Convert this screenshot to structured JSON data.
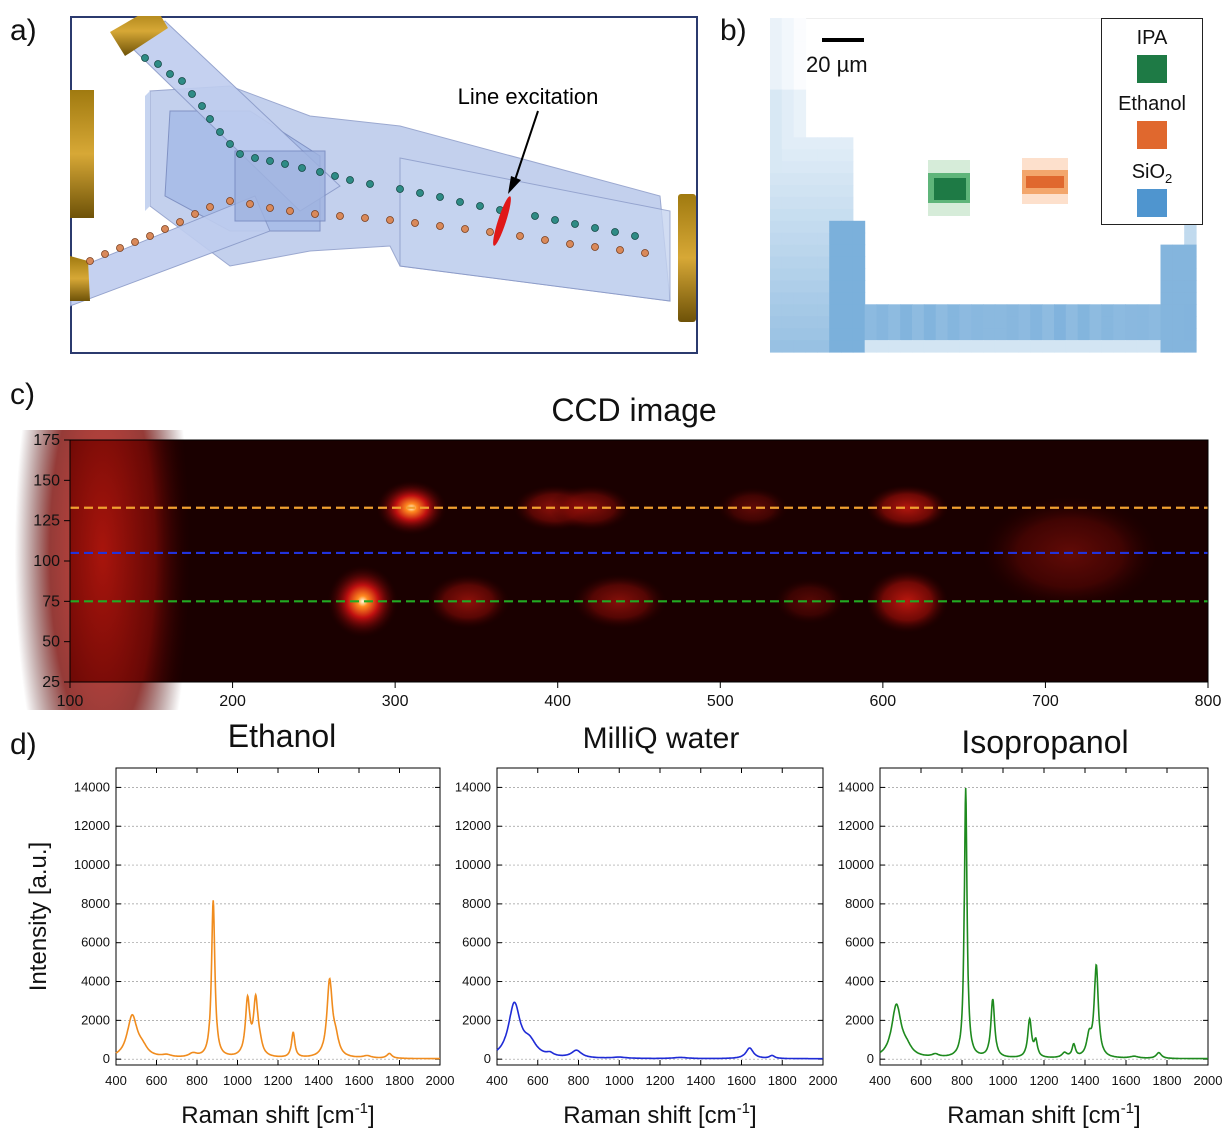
{
  "panels": {
    "a": "a)",
    "b": "b)",
    "c": "c)",
    "d": "d)"
  },
  "panel_a": {
    "annotation": "Line excitation"
  },
  "panel_b": {
    "scale_bar": "20 µm",
    "legend": [
      {
        "label": "IPA",
        "color": "#1e7a45"
      },
      {
        "label": "Ethanol",
        "color": "#e0682e"
      },
      {
        "label": "SiO",
        "sub": "2",
        "color": "#4f95cf"
      }
    ]
  },
  "chart_data": [
    {
      "type": "heatmap",
      "title": "CCD image",
      "xlim": [
        100,
        800
      ],
      "ylim": [
        25,
        175
      ],
      "xticks": [
        "100",
        "200",
        "300",
        "400",
        "500",
        "600",
        "700",
        "800"
      ],
      "yticks": [
        "175",
        "150",
        "125",
        "100",
        "75",
        "50",
        "25"
      ],
      "lines": [
        {
          "y": 133,
          "color": "#f0a030",
          "style": "dashed"
        },
        {
          "y": 105,
          "color": "#2233dd",
          "style": "dashed"
        },
        {
          "y": 75,
          "color": "#22aa22",
          "style": "dashed"
        }
      ],
      "spots": [
        {
          "x": 120,
          "y": 105,
          "i": 0.7,
          "w": 30,
          "h": 140
        },
        {
          "x": 310,
          "y": 133,
          "i": 1.0,
          "w": 12,
          "h": 12
        },
        {
          "x": 398,
          "y": 133,
          "i": 0.55,
          "w": 14,
          "h": 10
        },
        {
          "x": 420,
          "y": 133,
          "i": 0.5,
          "w": 14,
          "h": 10
        },
        {
          "x": 520,
          "y": 133,
          "i": 0.3,
          "w": 12,
          "h": 9
        },
        {
          "x": 615,
          "y": 133,
          "i": 0.75,
          "w": 14,
          "h": 10
        },
        {
          "x": 280,
          "y": 75,
          "i": 1.0,
          "w": 12,
          "h": 16
        },
        {
          "x": 345,
          "y": 75,
          "i": 0.55,
          "w": 14,
          "h": 12
        },
        {
          "x": 438,
          "y": 75,
          "i": 0.5,
          "w": 16,
          "h": 12
        },
        {
          "x": 555,
          "y": 75,
          "i": 0.25,
          "w": 12,
          "h": 10
        },
        {
          "x": 615,
          "y": 75,
          "i": 0.8,
          "w": 14,
          "h": 14
        },
        {
          "x": 715,
          "y": 105,
          "i": 0.3,
          "w": 30,
          "h": 25
        }
      ]
    },
    {
      "type": "line",
      "title": "Ethanol",
      "color": "#f08c1e",
      "xlabel": "Raman shift [cm",
      "xlabel_sup": "-1",
      "xlabel_end": "]",
      "ylabel": "Intensity [a.u.]",
      "xlim": [
        400,
        2000
      ],
      "ylim": [
        -300,
        15000
      ],
      "xticks": [
        400,
        600,
        800,
        1000,
        1200,
        1400,
        1600,
        1800,
        2000
      ],
      "yticks": [
        0,
        2000,
        4000,
        6000,
        8000,
        10000,
        12000,
        14000
      ],
      "baseline": 20,
      "peaks": [
        {
          "x": 480,
          "h": 2150,
          "w": 30
        },
        {
          "x": 530,
          "h": 400,
          "w": 30
        },
        {
          "x": 650,
          "h": 120,
          "w": 30
        },
        {
          "x": 780,
          "h": 200,
          "w": 25
        },
        {
          "x": 880,
          "h": 8100,
          "w": 10
        },
        {
          "x": 1050,
          "h": 2900,
          "w": 13
        },
        {
          "x": 1090,
          "h": 2800,
          "w": 13
        },
        {
          "x": 1110,
          "h": 500,
          "w": 15
        },
        {
          "x": 1275,
          "h": 1300,
          "w": 10
        },
        {
          "x": 1455,
          "h": 3900,
          "w": 16
        },
        {
          "x": 1485,
          "h": 800,
          "w": 18
        },
        {
          "x": 1640,
          "h": 120,
          "w": 25
        },
        {
          "x": 1750,
          "h": 250,
          "w": 15
        }
      ]
    },
    {
      "type": "line",
      "title": "MilliQ water",
      "color": "#1f2bd6",
      "xlabel": "Raman shift [cm",
      "xlabel_sup": "-1",
      "xlabel_end": "]",
      "xlim": [
        400,
        2000
      ],
      "ylim": [
        -300,
        15000
      ],
      "xticks": [
        400,
        600,
        800,
        1000,
        1200,
        1400,
        1600,
        1800,
        2000
      ],
      "yticks": [
        0,
        2000,
        4000,
        6000,
        8000,
        10000,
        12000,
        14000
      ],
      "baseline": 20,
      "peaks": [
        {
          "x": 485,
          "h": 2750,
          "w": 35
        },
        {
          "x": 560,
          "h": 700,
          "w": 40
        },
        {
          "x": 660,
          "h": 150,
          "w": 20
        },
        {
          "x": 790,
          "h": 380,
          "w": 30
        },
        {
          "x": 1000,
          "h": 60,
          "w": 40
        },
        {
          "x": 1300,
          "h": 60,
          "w": 40
        },
        {
          "x": 1640,
          "h": 550,
          "w": 22
        },
        {
          "x": 1750,
          "h": 150,
          "w": 15
        }
      ]
    },
    {
      "type": "line",
      "title": "Isopropanol",
      "color": "#1e8a1e",
      "xlabel": "Raman shift [cm",
      "xlabel_sup": "-1",
      "xlabel_end": "]",
      "xlim": [
        400,
        2000
      ],
      "ylim": [
        -300,
        15000
      ],
      "xticks": [
        400,
        600,
        800,
        1000,
        1200,
        1400,
        1600,
        1800,
        2000
      ],
      "yticks": [
        0,
        2000,
        4000,
        6000,
        8000,
        10000,
        12000,
        14000
      ],
      "baseline": 20,
      "peaks": [
        {
          "x": 480,
          "h": 2700,
          "w": 28
        },
        {
          "x": 530,
          "h": 400,
          "w": 30
        },
        {
          "x": 670,
          "h": 150,
          "w": 20
        },
        {
          "x": 818,
          "h": 13900,
          "w": 8
        },
        {
          "x": 950,
          "h": 3000,
          "w": 11
        },
        {
          "x": 1130,
          "h": 1950,
          "w": 11
        },
        {
          "x": 1160,
          "h": 800,
          "w": 10
        },
        {
          "x": 1300,
          "h": 250,
          "w": 15
        },
        {
          "x": 1345,
          "h": 650,
          "w": 10
        },
        {
          "x": 1420,
          "h": 1000,
          "w": 14
        },
        {
          "x": 1455,
          "h": 4700,
          "w": 12
        },
        {
          "x": 1640,
          "h": 100,
          "w": 25
        },
        {
          "x": 1760,
          "h": 300,
          "w": 15
        }
      ]
    }
  ]
}
